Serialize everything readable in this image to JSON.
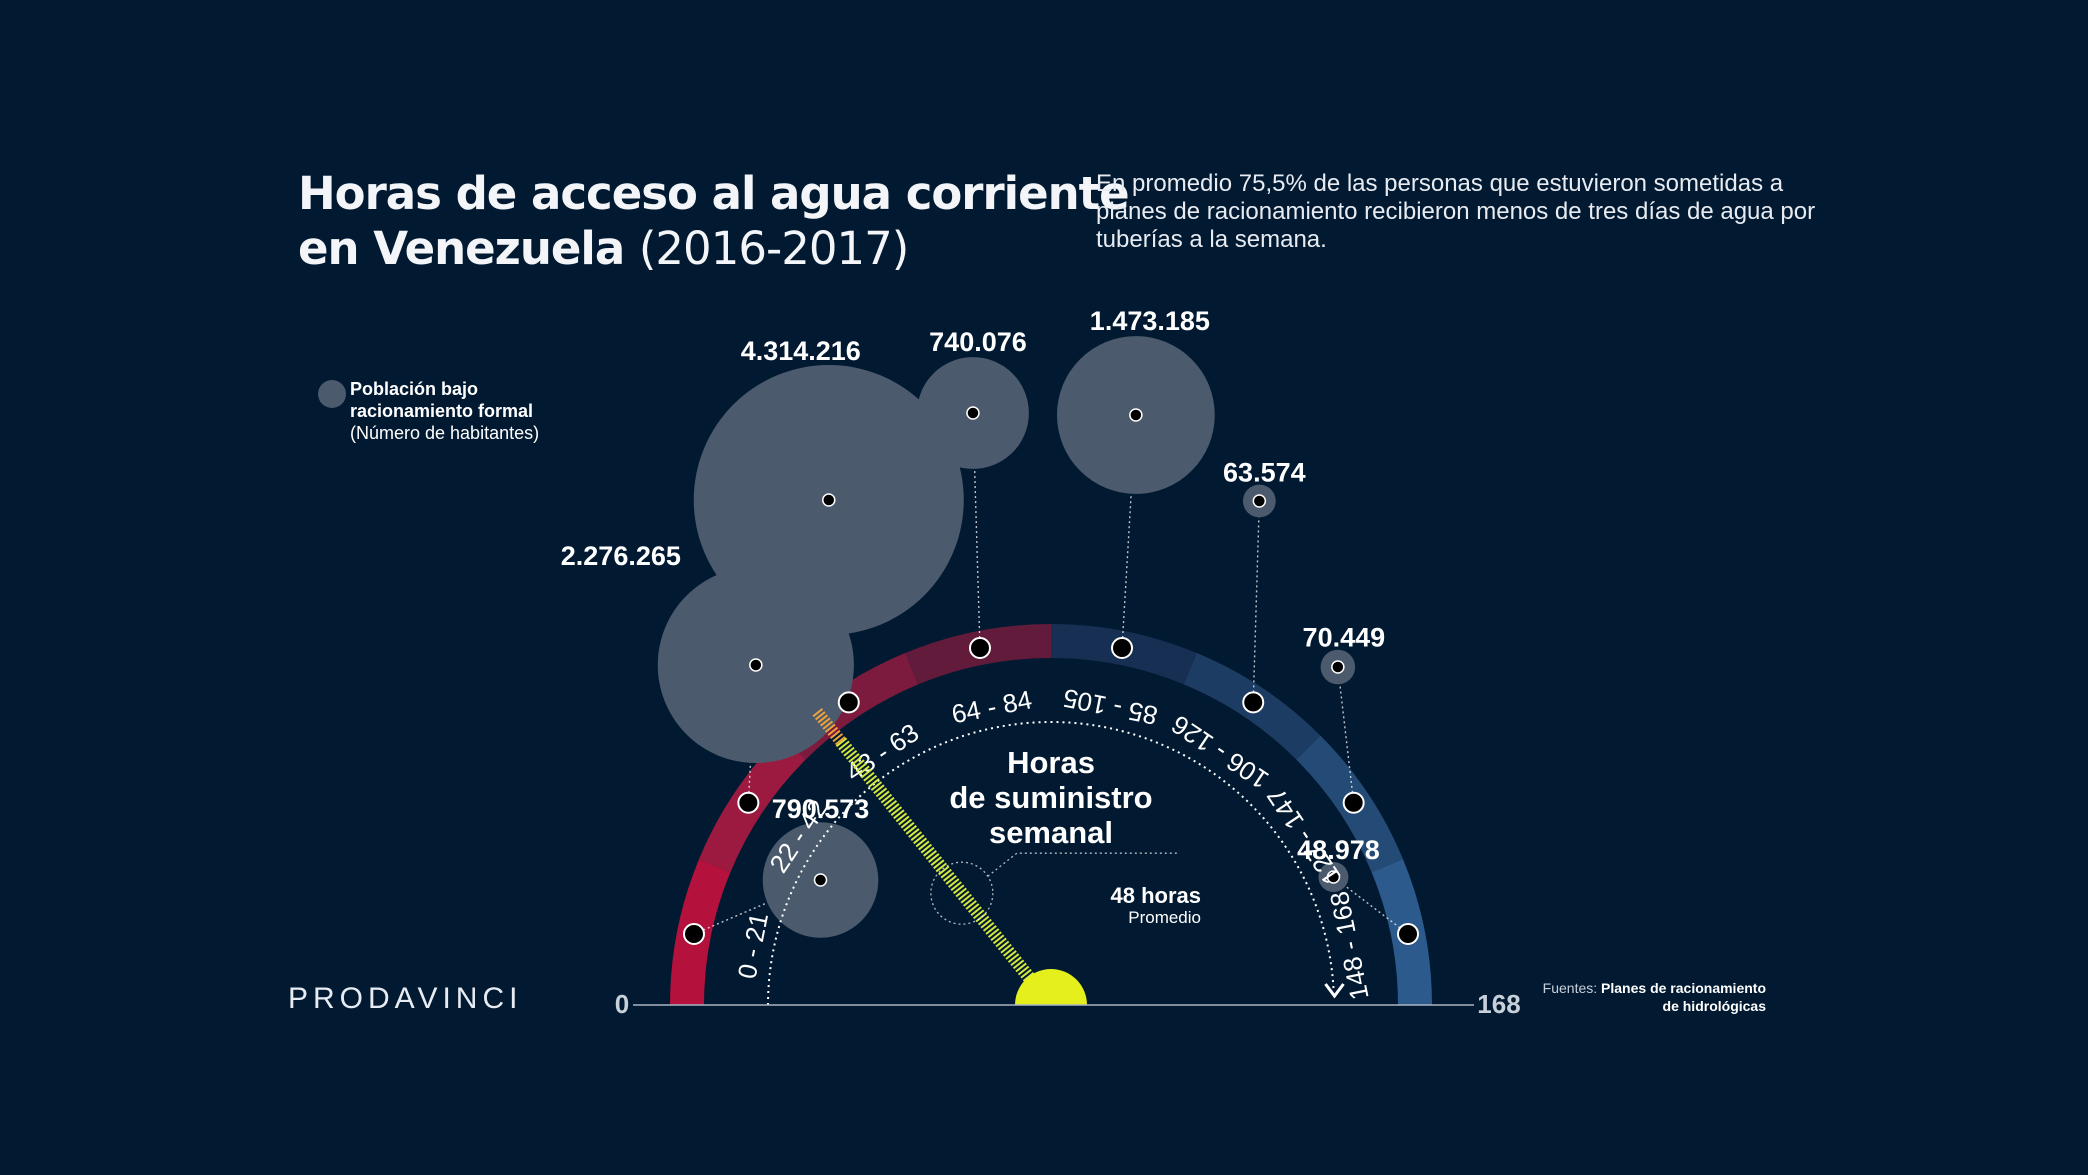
{
  "title": {
    "line1": "Horas de acceso al agua corriente",
    "line2_bold": "en Venezuela",
    "line2_years": "(2016-2017)"
  },
  "subtitle": "En promedio 75,5% de las personas que estuvieron sometidas a planes de racionamiento recibieron menos de tres días de agua por tuberías a la semana.",
  "legend": {
    "label_bold_1": "Población bajo",
    "label_bold_2": "racionamiento formal",
    "label_note": "(Número de habitantes)"
  },
  "center_label": [
    "Horas",
    "de suministro",
    "semanal"
  ],
  "average_marker": {
    "value_text": "48 horas",
    "label": "Promedio"
  },
  "axis": {
    "min_label": "0",
    "max_label": "168"
  },
  "brand": "PRODAVINCI",
  "source": {
    "prefix": "Fuentes:",
    "text_line1": "Planes de racionamiento",
    "text_line2": "de hidrológicas"
  },
  "colors": {
    "background": "#021a31",
    "bubble": "#4b5b6d",
    "needle": "#d4e840",
    "hub": "#e5ef1b",
    "segment_colors": [
      "#b5113d",
      "#9c1a40",
      "#7c1b3e",
      "#621b3a",
      "#162f52",
      "#1d3c63",
      "#244a76",
      "#2d5a8c"
    ]
  },
  "chart_data": {
    "type": "radial-gauge-bubble",
    "title": "Horas de acceso al agua corriente en Venezuela (2016-2017)",
    "axis_label": "Horas de suministro semanal",
    "range": [
      0,
      168
    ],
    "average_hours": 48,
    "categories": [
      "0 - 21",
      "22 - 42",
      "43 - 63",
      "64 - 84",
      "85 - 105",
      "106 - 126",
      "127 - 147",
      "148 - 168"
    ],
    "series": [
      {
        "name": "Población bajo racionamiento formal",
        "values": [
          790573,
          2276265,
          4314216,
          740076,
          1473185,
          63574,
          70449,
          48978
        ],
        "labels": [
          "790.573",
          "2.276.265",
          "4.314.216",
          "740.076",
          "1.473.185",
          "63.574",
          "70.449",
          "48.978"
        ]
      }
    ]
  }
}
